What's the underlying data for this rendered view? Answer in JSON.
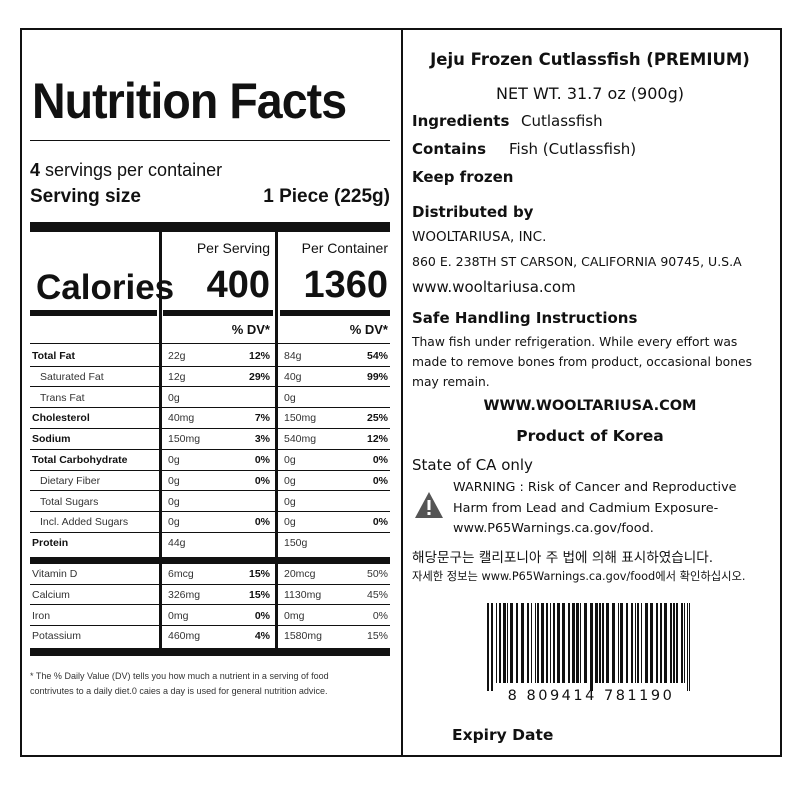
{
  "nutrition": {
    "title": "Nutrition Facts",
    "servings_count": "4",
    "servings_text": "servings per container",
    "serving_size_label": "Serving size",
    "serving_size_value": "1 Piece (225g)",
    "per_serving_header": "Per Serving",
    "per_container_header": "Per Container",
    "calories_label": "Calories",
    "calories_serving": "400",
    "calories_container": "1360",
    "dv_header_serving": "% DV*",
    "dv_header_container": "% DV*",
    "rows": [
      {
        "name": "Total Fat",
        "serving": "22g",
        "serving_dv": "12%",
        "container": "84g",
        "container_dv": "54%"
      },
      {
        "name": "Saturated Fat",
        "serving": "12g",
        "serving_dv": "29%",
        "container": "40g",
        "container_dv": "99%"
      },
      {
        "name": "Trans Fat",
        "serving": "0g",
        "container": "0g"
      },
      {
        "name": "Cholesterol",
        "serving": "40mg",
        "serving_dv": "7%",
        "container": "150mg",
        "container_dv": "25%"
      },
      {
        "name": "Sodium",
        "serving": "150mg",
        "serving_dv": "3%",
        "container": "540mg",
        "container_dv": "12%"
      },
      {
        "name": "Total Carbohydrate",
        "serving": "0g",
        "serving_dv": "0%",
        "container": "0g",
        "container_dv": "0%"
      },
      {
        "name": "Dietary Fiber",
        "serving": "0g",
        "serving_dv": "0%",
        "container": "0g",
        "container_dv": "0%"
      },
      {
        "name": "Total Sugars",
        "serving": "0g",
        "container": "0g"
      },
      {
        "name": "Incl. Added Sugars",
        "serving": "0g",
        "serving_dv": "0%",
        "container": "0g",
        "container_dv": "0%"
      },
      {
        "name": "Protein",
        "serving": "44g",
        "container": "150g"
      },
      {
        "name": "Vitamin D",
        "serving": "6mcg",
        "serving_dv": "15%",
        "container": "20mcg",
        "container_dv": "50%"
      },
      {
        "name": "Calcium",
        "serving": "326mg",
        "serving_dv": "15%",
        "container": "1130mg",
        "container_dv": "45%"
      },
      {
        "name": "Iron",
        "serving": "0mg",
        "serving_dv": "0%",
        "container": "0mg",
        "container_dv": "0%"
      },
      {
        "name": "Potassium",
        "serving": "460mg",
        "serving_dv": "4%",
        "container": "1580mg",
        "container_dv": "15%"
      }
    ],
    "footnote": "* The % Daily Value (DV) tells you how much a nutrient in a serving of food contrivutes to a daily diet.0 caies a day is used for general nutrition advice."
  },
  "info": {
    "product_name": "Jeju Frozen Cutlassfish (PREMIUM)",
    "net_weight": "NET WT. 31.7 oz (900g)",
    "ingredients_label": "Ingredients",
    "ingredients_value": "Cutlassfish",
    "contains_label": "Contains",
    "contains_value": "Fish (Cutlassfish)",
    "keep_frozen": "Keep frozen",
    "distributed_by": "Distributed by",
    "company": "WOOLTARIUSA, INC.",
    "address": "860 E. 238TH ST CARSON, CALIFORNIA 90745, U.S.A",
    "website": "www.wooltariusa.com",
    "safe_handling_title": "Safe Handling Instructions",
    "safe_handling_text": "Thaw fish under refrigeration. While every effort was made to remove bones from product, occasional bones may remain.",
    "website_upper": "WWW.WOOLTARIUSA.COM",
    "origin": "Product of Korea",
    "state_notice": "State of CA only",
    "warning": "WARNING : Risk of Cancer and Reproductive Harm from Lead and Cadmium Exposure- www.P65Warnings.ca.gov/food.",
    "korean_line_1": "해당문구는 캘리포니아 주 법에 의해 표시하였습니다.",
    "korean_line_2": "자세한 정보는 www.P65Warnings.ca.gov/food에서 확인하십시오.",
    "barcode_number": "8  809414  781190",
    "expiry_label": "Expiry Date"
  }
}
